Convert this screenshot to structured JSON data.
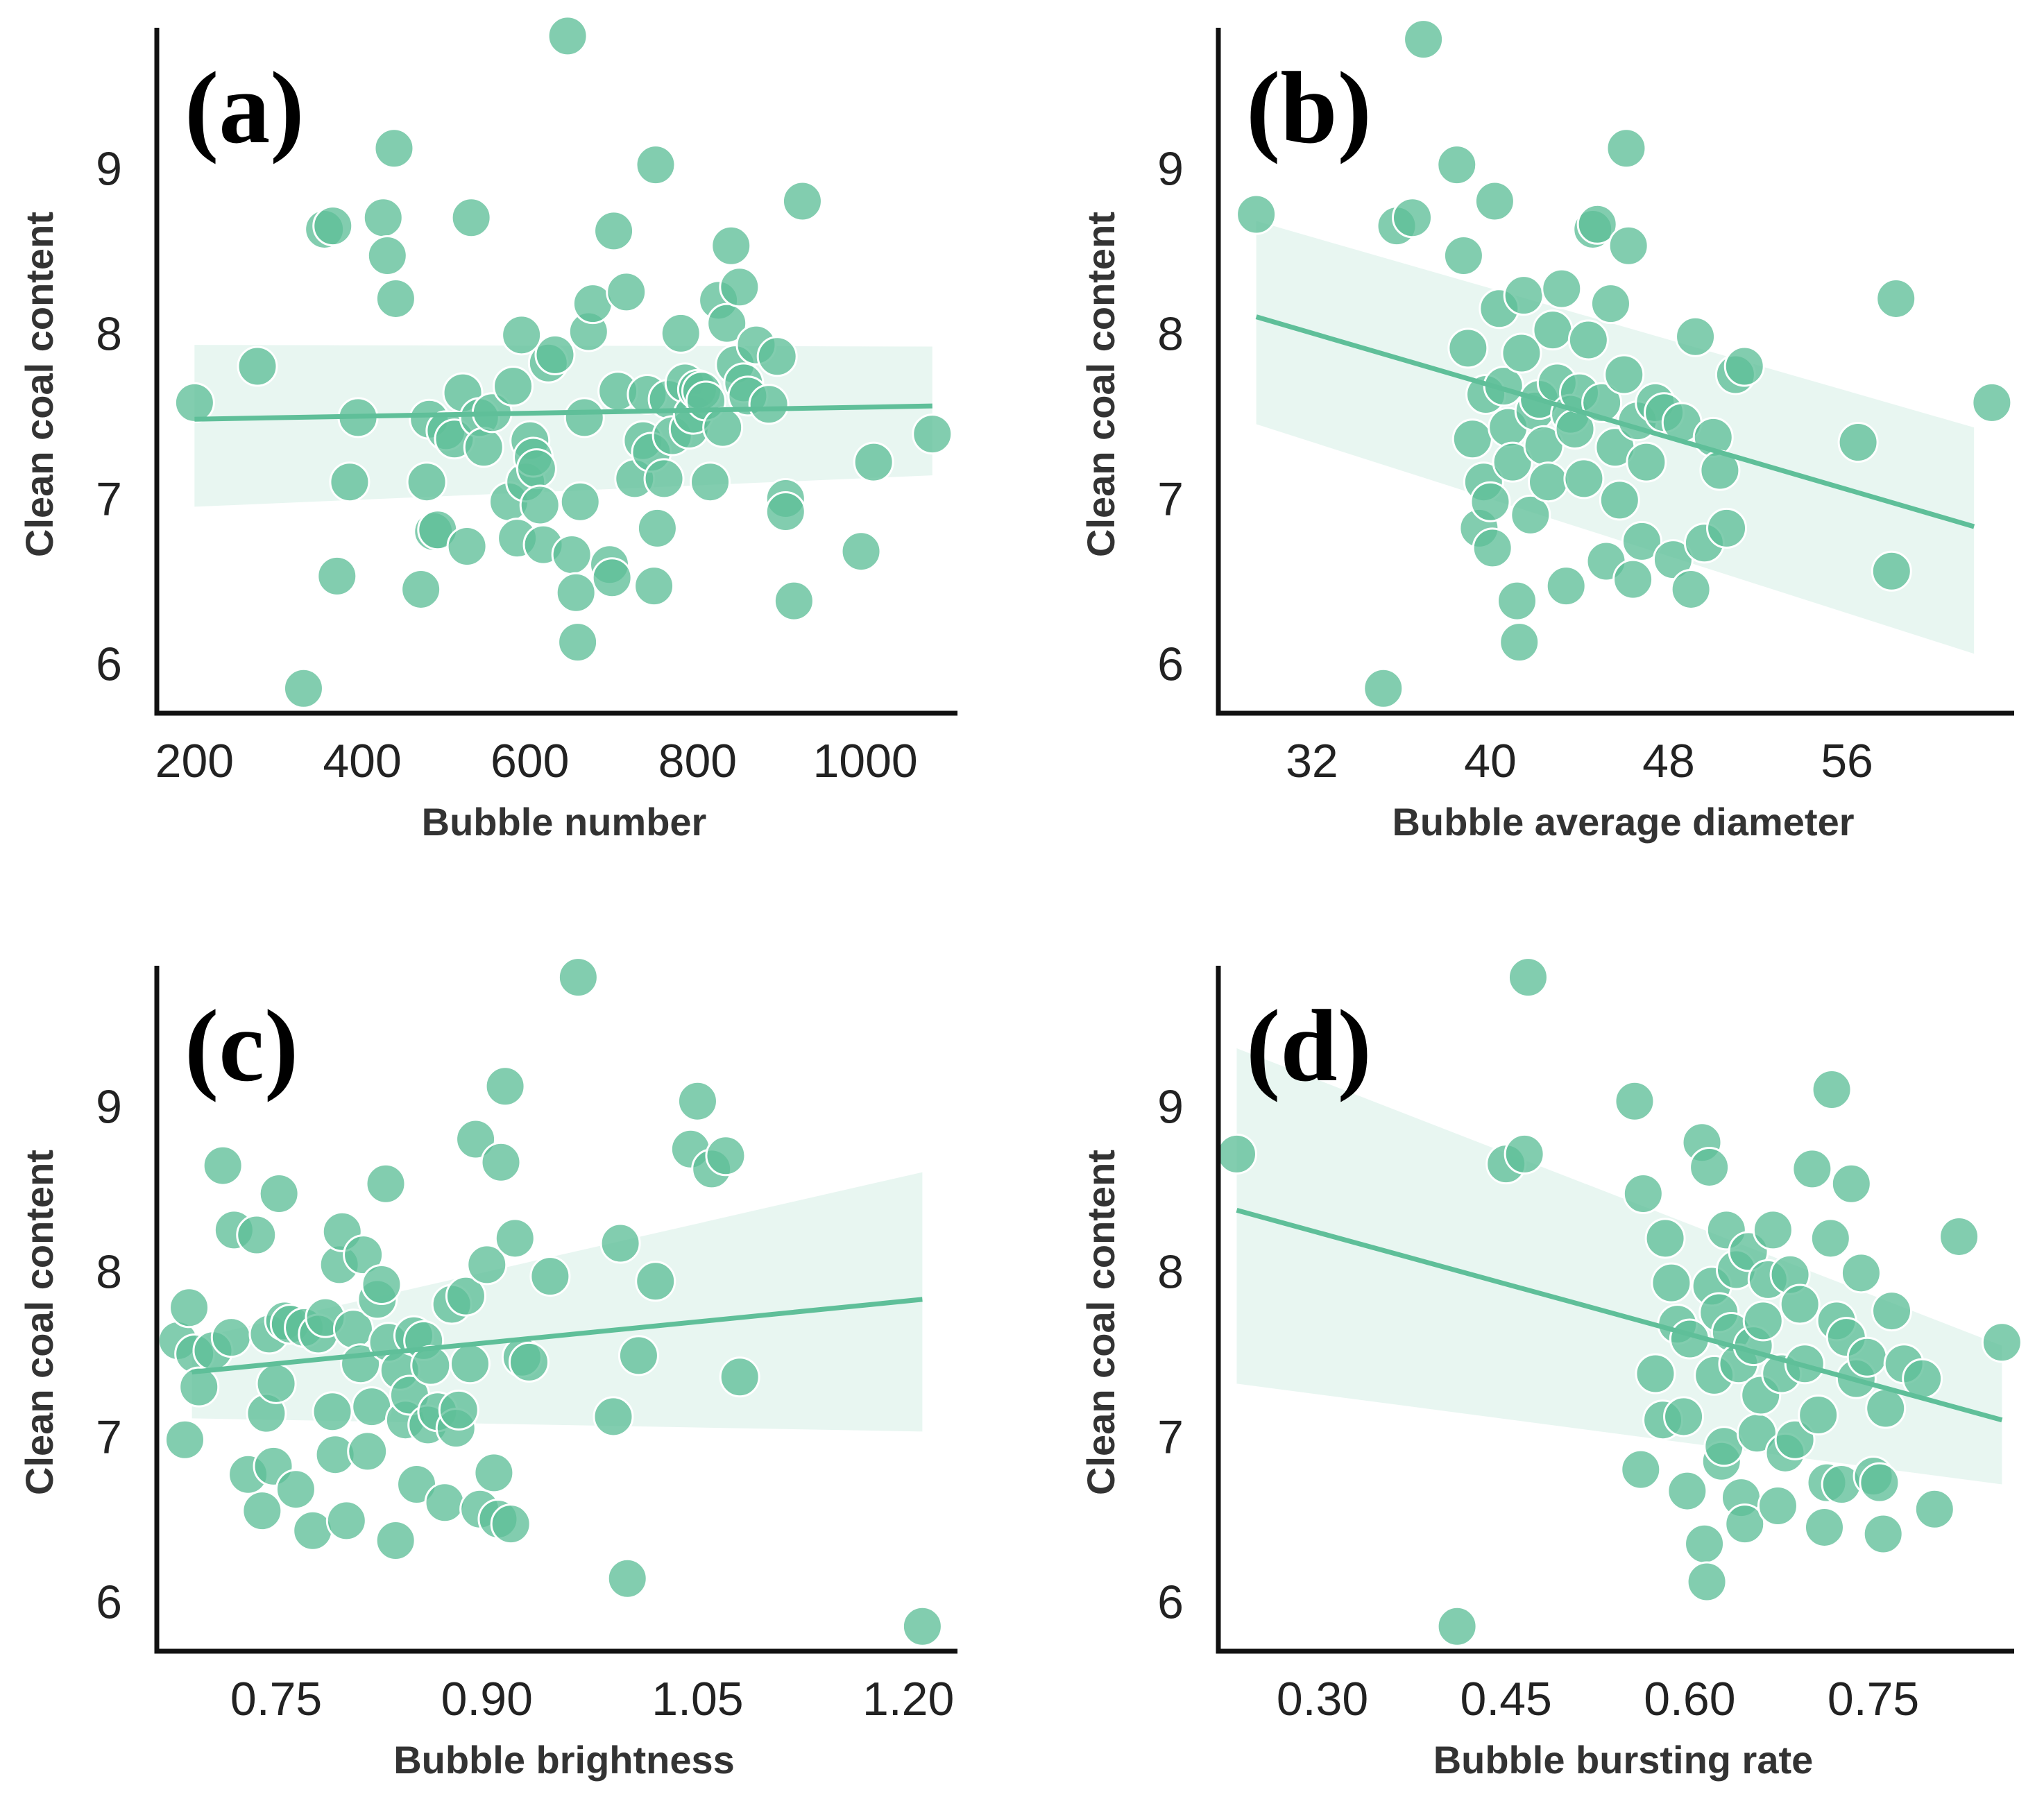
{
  "chart_data": [
    {
      "type": "scatter",
      "panel_label": "(a)",
      "xlabel": "Bubble number",
      "ylabel": "Clean coal content",
      "xlim": [
        155,
        1110
      ],
      "ylim": [
        5.7,
        9.85
      ],
      "xticks": [
        200,
        400,
        600,
        800,
        1000
      ],
      "xtick_labels": [
        "200",
        "400",
        "600",
        "800",
        "1000"
      ],
      "yticks": [
        6,
        7,
        8,
        9
      ],
      "ytick_labels": [
        "6",
        "7",
        "8",
        "9"
      ],
      "regression": {
        "x": [
          200,
          1080
        ],
        "y": [
          7.48,
          7.56
        ]
      },
      "ci": {
        "x": [
          200,
          1080
        ],
        "upper": [
          7.93,
          7.92
        ],
        "lower": [
          6.95,
          7.14
        ]
      },
      "points": [
        [
          200,
          7.58
        ],
        [
          275,
          7.8
        ],
        [
          330,
          5.85
        ],
        [
          355,
          8.63
        ],
        [
          365,
          8.65
        ],
        [
          370,
          6.53
        ],
        [
          385,
          7.1
        ],
        [
          395,
          7.49
        ],
        [
          425,
          8.7
        ],
        [
          430,
          8.47
        ],
        [
          438,
          9.12
        ],
        [
          440,
          8.21
        ],
        [
          470,
          6.45
        ],
        [
          477,
          7.1
        ],
        [
          480,
          7.48
        ],
        [
          485,
          6.8
        ],
        [
          490,
          6.81
        ],
        [
          500,
          7.41
        ],
        [
          510,
          7.36
        ],
        [
          520,
          7.64
        ],
        [
          525,
          6.71
        ],
        [
          530,
          8.7
        ],
        [
          540,
          7.49
        ],
        [
          545,
          7.31
        ],
        [
          555,
          7.52
        ],
        [
          575,
          6.98
        ],
        [
          580,
          7.68
        ],
        [
          585,
          6.76
        ],
        [
          590,
          7.99
        ],
        [
          595,
          7.1
        ],
        [
          600,
          7.35
        ],
        [
          604,
          7.25
        ],
        [
          608,
          7.18
        ],
        [
          612,
          6.96
        ],
        [
          616,
          6.72
        ],
        [
          622,
          7.82
        ],
        [
          630,
          7.87
        ],
        [
          645,
          9.8
        ],
        [
          650,
          6.66
        ],
        [
          655,
          6.43
        ],
        [
          657,
          6.13
        ],
        [
          660,
          6.98
        ],
        [
          665,
          7.49
        ],
        [
          670,
          8.01
        ],
        [
          675,
          8.18
        ],
        [
          695,
          6.6
        ],
        [
          698,
          6.52
        ],
        [
          700,
          8.62
        ],
        [
          705,
          7.65
        ],
        [
          715,
          8.25
        ],
        [
          725,
          7.12
        ],
        [
          735,
          7.35
        ],
        [
          740,
          7.63
        ],
        [
          745,
          7.28
        ],
        [
          748,
          6.47
        ],
        [
          750,
          9.02
        ],
        [
          752,
          6.82
        ],
        [
          760,
          7.12
        ],
        [
          765,
          7.6
        ],
        [
          770,
          7.38
        ],
        [
          780,
          8.0
        ],
        [
          785,
          7.7
        ],
        [
          790,
          7.42
        ],
        [
          795,
          7.51
        ],
        [
          800,
          7.66
        ],
        [
          805,
          7.65
        ],
        [
          810,
          7.59
        ],
        [
          815,
          7.1
        ],
        [
          825,
          8.2
        ],
        [
          830,
          7.43
        ],
        [
          835,
          8.06
        ],
        [
          840,
          8.53
        ],
        [
          845,
          7.81
        ],
        [
          850,
          8.28
        ],
        [
          855,
          7.7
        ],
        [
          860,
          7.62
        ],
        [
          870,
          7.93
        ],
        [
          885,
          7.57
        ],
        [
          895,
          7.86
        ],
        [
          905,
          7.0
        ],
        [
          905,
          6.92
        ],
        [
          915,
          6.38
        ],
        [
          925,
          8.8
        ],
        [
          995,
          6.68
        ],
        [
          1010,
          7.22
        ],
        [
          1080,
          7.39
        ]
      ]
    },
    {
      "type": "scatter",
      "panel_label": "(b)",
      "xlabel": "Bubble average diameter",
      "ylabel": "Clean coal content",
      "xlim": [
        27.8,
        63.5
      ],
      "ylim": [
        5.7,
        9.85
      ],
      "xticks": [
        32,
        40,
        48,
        56
      ],
      "xtick_labels": [
        "32",
        "40",
        "48",
        "56"
      ],
      "yticks": [
        6,
        7,
        8,
        9
      ],
      "ytick_labels": [
        "6",
        "7",
        "8",
        "9"
      ],
      "regression": {
        "x": [
          29.5,
          61.7
        ],
        "y": [
          8.1,
          6.83
        ]
      },
      "ci": {
        "x": [
          29.5,
          61.7
        ],
        "upper": [
          8.68,
          7.43
        ],
        "lower": [
          7.45,
          6.06
        ]
      },
      "points": [
        [
          29.5,
          8.72
        ],
        [
          35.2,
          5.85
        ],
        [
          35.8,
          8.65
        ],
        [
          36.5,
          8.7
        ],
        [
          37.0,
          9.78
        ],
        [
          38.5,
          9.02
        ],
        [
          38.8,
          8.47
        ],
        [
          39.0,
          7.91
        ],
        [
          39.2,
          7.36
        ],
        [
          39.5,
          6.82
        ],
        [
          39.7,
          7.1
        ],
        [
          39.8,
          7.63
        ],
        [
          40.0,
          6.98
        ],
        [
          40.1,
          6.7
        ],
        [
          40.2,
          8.8
        ],
        [
          40.4,
          8.15
        ],
        [
          40.6,
          7.68
        ],
        [
          40.8,
          7.43
        ],
        [
          41.0,
          7.22
        ],
        [
          41.2,
          6.38
        ],
        [
          41.3,
          6.13
        ],
        [
          41.4,
          7.88
        ],
        [
          41.5,
          8.23
        ],
        [
          41.8,
          6.9
        ],
        [
          42.0,
          7.53
        ],
        [
          42.2,
          7.6
        ],
        [
          42.4,
          7.32
        ],
        [
          42.6,
          7.1
        ],
        [
          42.8,
          8.02
        ],
        [
          43.0,
          7.7
        ],
        [
          43.2,
          8.27
        ],
        [
          43.4,
          6.47
        ],
        [
          43.6,
          7.51
        ],
        [
          43.8,
          7.42
        ],
        [
          44.0,
          7.64
        ],
        [
          44.2,
          7.12
        ],
        [
          44.4,
          7.96
        ],
        [
          44.6,
          8.63
        ],
        [
          44.8,
          8.66
        ],
        [
          45.0,
          7.58
        ],
        [
          45.2,
          6.62
        ],
        [
          45.4,
          8.18
        ],
        [
          45.6,
          7.31
        ],
        [
          45.8,
          6.99
        ],
        [
          46.0,
          7.75
        ],
        [
          46.1,
          9.12
        ],
        [
          46.2,
          8.53
        ],
        [
          46.4,
          6.51
        ],
        [
          46.6,
          7.47
        ],
        [
          46.8,
          6.74
        ],
        [
          47.0,
          7.22
        ],
        [
          47.4,
          7.58
        ],
        [
          47.8,
          7.52
        ],
        [
          48.2,
          6.63
        ],
        [
          48.6,
          7.46
        ],
        [
          49.0,
          6.45
        ],
        [
          49.2,
          7.98
        ],
        [
          49.6,
          6.73
        ],
        [
          50.0,
          7.37
        ],
        [
          50.3,
          7.17
        ],
        [
          50.6,
          6.82
        ],
        [
          51.0,
          7.75
        ],
        [
          51.4,
          7.8
        ],
        [
          56.5,
          7.34
        ],
        [
          58.0,
          6.56
        ],
        [
          58.2,
          8.21
        ],
        [
          62.5,
          7.58
        ]
      ]
    },
    {
      "type": "scatter",
      "panel_label": "(c)",
      "xlabel": "Bubble brightness",
      "ylabel": "Clean coal content",
      "xlim": [
        0.665,
        1.235
      ],
      "ylim": [
        5.7,
        9.85
      ],
      "xticks": [
        0.75,
        0.9,
        1.05,
        1.2
      ],
      "xtick_labels": [
        "0.75",
        "0.90",
        "1.05",
        "1.20"
      ],
      "yticks": [
        6,
        7,
        8,
        9
      ],
      "ytick_labels": [
        "6",
        "7",
        "8",
        "9"
      ],
      "regression": {
        "x": [
          0.69,
          1.21
        ],
        "y": [
          7.39,
          7.83
        ]
      },
      "ci": {
        "x": [
          0.69,
          1.21
        ],
        "upper": [
          7.59,
          8.6
        ],
        "lower": [
          7.11,
          7.03
        ]
      },
      "points": [
        [
          0.68,
          7.58
        ],
        [
          0.685,
          6.98
        ],
        [
          0.688,
          7.78
        ],
        [
          0.692,
          7.5
        ],
        [
          0.695,
          7.3
        ],
        [
          0.705,
          7.52
        ],
        [
          0.712,
          8.64
        ],
        [
          0.718,
          7.6
        ],
        [
          0.72,
          8.25
        ],
        [
          0.73,
          6.77
        ],
        [
          0.736,
          8.22
        ],
        [
          0.74,
          6.55
        ],
        [
          0.743,
          7.14
        ],
        [
          0.745,
          7.62
        ],
        [
          0.748,
          6.82
        ],
        [
          0.75,
          7.32
        ],
        [
          0.752,
          8.47
        ],
        [
          0.756,
          7.7
        ],
        [
          0.76,
          7.68
        ],
        [
          0.764,
          6.68
        ],
        [
          0.77,
          7.66
        ],
        [
          0.776,
          6.43
        ],
        [
          0.78,
          7.62
        ],
        [
          0.785,
          7.72
        ],
        [
          0.79,
          7.15
        ],
        [
          0.792,
          6.89
        ],
        [
          0.795,
          8.04
        ],
        [
          0.797,
          8.24
        ],
        [
          0.8,
          6.49
        ],
        [
          0.805,
          7.65
        ],
        [
          0.81,
          7.44
        ],
        [
          0.812,
          8.1
        ],
        [
          0.815,
          6.91
        ],
        [
          0.818,
          7.18
        ],
        [
          0.822,
          7.83
        ],
        [
          0.825,
          7.92
        ],
        [
          0.828,
          8.53
        ],
        [
          0.83,
          7.57
        ],
        [
          0.835,
          6.37
        ],
        [
          0.838,
          7.4
        ],
        [
          0.842,
          7.1
        ],
        [
          0.845,
          7.25
        ],
        [
          0.848,
          7.61
        ],
        [
          0.85,
          6.71
        ],
        [
          0.855,
          7.58
        ],
        [
          0.858,
          7.07
        ],
        [
          0.86,
          7.43
        ],
        [
          0.865,
          7.15
        ],
        [
          0.87,
          6.6
        ],
        [
          0.875,
          7.8
        ],
        [
          0.878,
          7.05
        ],
        [
          0.88,
          7.16
        ],
        [
          0.885,
          7.85
        ],
        [
          0.888,
          7.44
        ],
        [
          0.892,
          8.8
        ],
        [
          0.895,
          6.56
        ],
        [
          0.9,
          8.04
        ],
        [
          0.905,
          6.78
        ],
        [
          0.908,
          6.5
        ],
        [
          0.91,
          8.66
        ],
        [
          0.913,
          9.12
        ],
        [
          0.917,
          6.47
        ],
        [
          0.92,
          8.2
        ],
        [
          0.925,
          7.48
        ],
        [
          0.93,
          7.45
        ],
        [
          0.945,
          7.97
        ],
        [
          0.965,
          9.78
        ],
        [
          0.99,
          7.12
        ],
        [
          0.995,
          8.17
        ],
        [
          1.0,
          6.14
        ],
        [
          1.008,
          7.49
        ],
        [
          1.02,
          7.94
        ],
        [
          1.045,
          8.74
        ],
        [
          1.05,
          9.03
        ],
        [
          1.06,
          8.62
        ],
        [
          1.07,
          8.7
        ],
        [
          1.08,
          7.36
        ],
        [
          1.21,
          5.85
        ]
      ]
    },
    {
      "type": "scatter",
      "panel_label": "(d)",
      "xlabel": "Bubble bursting rate",
      "ylabel": "Clean coal content",
      "xlim": [
        0.215,
        0.865
      ],
      "ylim": [
        5.7,
        9.85
      ],
      "xticks": [
        0.3,
        0.45,
        0.6,
        0.75
      ],
      "xtick_labels": [
        "0.30",
        "0.45",
        "0.60",
        "0.75"
      ],
      "yticks": [
        6,
        7,
        8,
        9
      ],
      "ytick_labels": [
        "6",
        "7",
        "8",
        "9"
      ],
      "regression": {
        "x": [
          0.23,
          0.855
        ],
        "y": [
          8.37,
          7.1
        ]
      },
      "ci": {
        "x": [
          0.23,
          0.855
        ],
        "upper": [
          9.35,
          7.55
        ],
        "lower": [
          7.32,
          6.71
        ]
      },
      "points": [
        [
          0.23,
          8.71
        ],
        [
          0.41,
          5.85
        ],
        [
          0.45,
          8.65
        ],
        [
          0.465,
          8.71
        ],
        [
          0.468,
          9.78
        ],
        [
          0.555,
          9.03
        ],
        [
          0.56,
          6.8
        ],
        [
          0.562,
          8.47
        ],
        [
          0.572,
          7.38
        ],
        [
          0.578,
          7.1
        ],
        [
          0.58,
          8.2
        ],
        [
          0.585,
          7.93
        ],
        [
          0.59,
          7.68
        ],
        [
          0.595,
          7.12
        ],
        [
          0.598,
          6.67
        ],
        [
          0.6,
          7.59
        ],
        [
          0.61,
          8.78
        ],
        [
          0.612,
          6.35
        ],
        [
          0.614,
          6.12
        ],
        [
          0.616,
          8.63
        ],
        [
          0.618,
          7.91
        ],
        [
          0.62,
          7.37
        ],
        [
          0.624,
          7.75
        ],
        [
          0.626,
          6.85
        ],
        [
          0.628,
          6.94
        ],
        [
          0.63,
          8.25
        ],
        [
          0.634,
          7.63
        ],
        [
          0.638,
          8.01
        ],
        [
          0.64,
          7.44
        ],
        [
          0.642,
          6.63
        ],
        [
          0.645,
          6.47
        ],
        [
          0.648,
          8.12
        ],
        [
          0.652,
          7.55
        ],
        [
          0.655,
          7.02
        ],
        [
          0.658,
          7.25
        ],
        [
          0.66,
          7.7
        ],
        [
          0.664,
          7.95
        ],
        [
          0.668,
          8.25
        ],
        [
          0.672,
          6.58
        ],
        [
          0.675,
          7.38
        ],
        [
          0.678,
          6.9
        ],
        [
          0.682,
          7.98
        ],
        [
          0.686,
          6.98
        ],
        [
          0.69,
          7.8
        ],
        [
          0.694,
          7.44
        ],
        [
          0.7,
          8.62
        ],
        [
          0.705,
          7.13
        ],
        [
          0.71,
          6.45
        ],
        [
          0.712,
          6.72
        ],
        [
          0.715,
          8.2
        ],
        [
          0.716,
          9.1
        ],
        [
          0.72,
          7.7
        ],
        [
          0.724,
          6.71
        ],
        [
          0.728,
          7.6
        ],
        [
          0.732,
          8.53
        ],
        [
          0.736,
          7.35
        ],
        [
          0.74,
          7.99
        ],
        [
          0.745,
          7.48
        ],
        [
          0.75,
          6.76
        ],
        [
          0.755,
          6.72
        ],
        [
          0.758,
          6.41
        ],
        [
          0.76,
          7.17
        ],
        [
          0.765,
          7.76
        ],
        [
          0.775,
          7.44
        ],
        [
          0.79,
          7.35
        ],
        [
          0.8,
          6.56
        ],
        [
          0.82,
          8.21
        ],
        [
          0.855,
          7.57
        ]
      ]
    }
  ]
}
